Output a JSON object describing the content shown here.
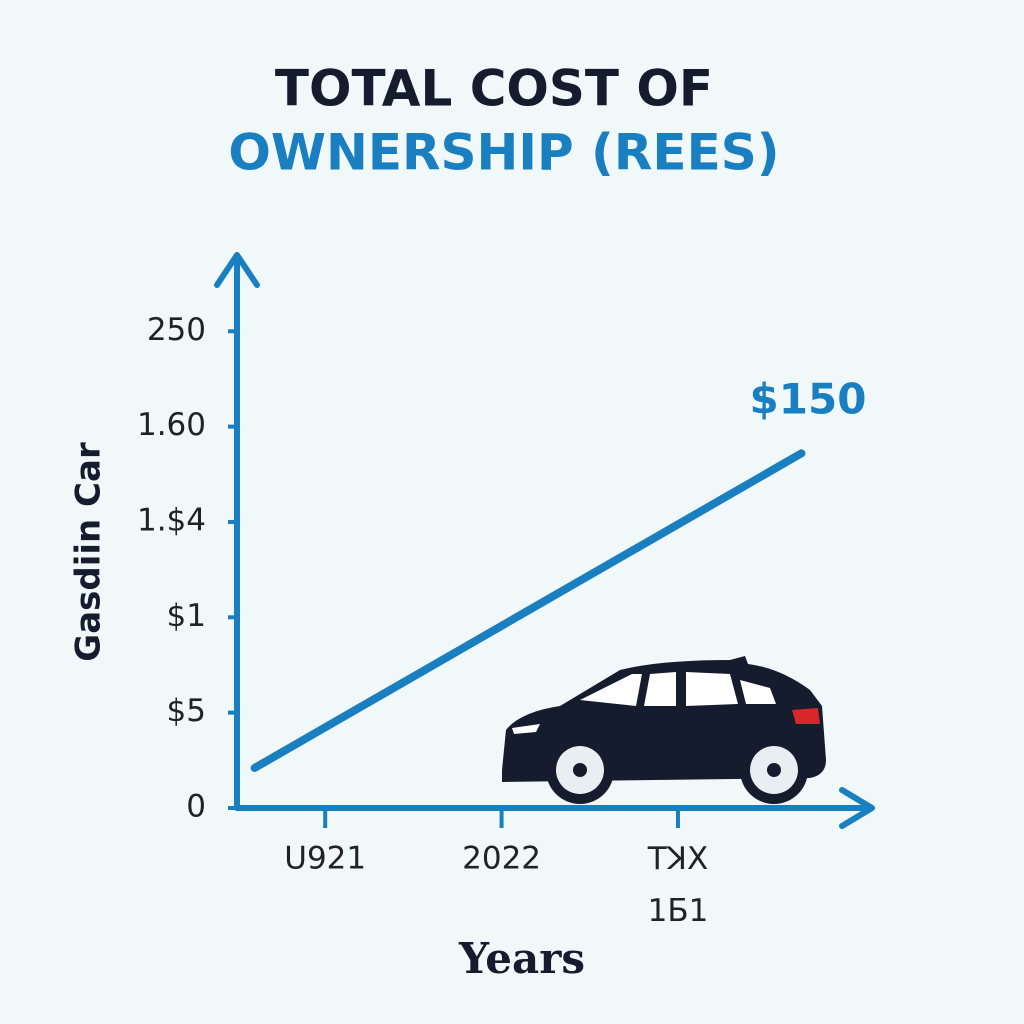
{
  "chart_data": {
    "type": "line",
    "title": "TOTAL COST OF",
    "subtitle": "OWNERSHIP (REES)",
    "y_label": "Gasdiin Car",
    "x_label": "Years",
    "annotation": "$150",
    "x": [
      2020.6,
      2023.7
    ],
    "values": [
      21,
      186
    ],
    "color": "#1a7fc1",
    "axis_color": "#1a7fc1",
    "xlim": [
      2020.5,
      2024.1
    ],
    "xticks": [
      {
        "value": 2021,
        "label": "U921"
      },
      2022,
      {
        "value": 2023,
        "label": "TꓘX\n1Б1"
      }
    ],
    "ylim": [
      0,
      290
    ],
    "yticks": [
      0,
      {
        "value": 50,
        "label": "$5"
      },
      {
        "value": 100,
        "label": "$1"
      },
      {
        "value": 150,
        "label": "1.$4"
      },
      {
        "value": 200,
        "label": "1.60"
      },
      250
    ],
    "grid": false
  }
}
